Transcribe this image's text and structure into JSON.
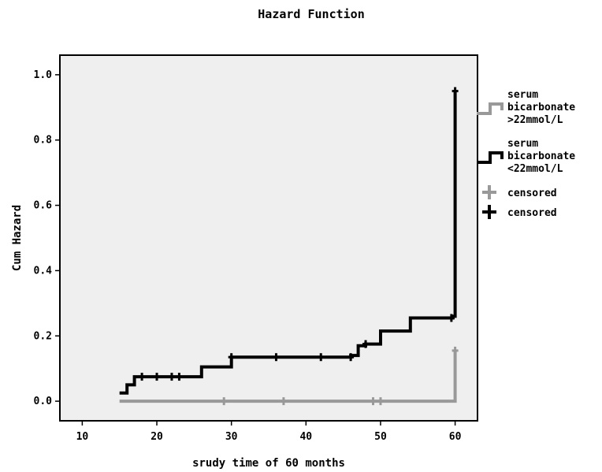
{
  "chart_data": {
    "type": "line",
    "title": "Hazard Function",
    "xlabel": "srudy time of 60 months",
    "ylabel": "Cum Hazard",
    "xlim": [
      7,
      63
    ],
    "ylim": [
      -0.06,
      1.06
    ],
    "x_ticks": [
      10,
      20,
      30,
      40,
      50,
      60
    ],
    "y_ticks": [
      0.0,
      0.2,
      0.4,
      0.6,
      0.8,
      1.0
    ],
    "x_tick_labels": [
      "10",
      "20",
      "30",
      "40",
      "50",
      "60"
    ],
    "y_tick_labels": [
      "0.0",
      "0.2",
      "0.4",
      "0.6",
      "0.8",
      "1.0"
    ],
    "grid": false,
    "legend_position": "right",
    "background": "#efefef",
    "series": [
      {
        "name": "serum bicarbonate >22mmol/L",
        "legend_lines": [
          "serum",
          "bicarbonate",
          ">22mmol/L"
        ],
        "color": "#999999",
        "step_points": [
          [
            15,
            0.0
          ],
          [
            60,
            0.0
          ],
          [
            60,
            0.155
          ]
        ],
        "censored": [
          [
            29,
            0.0
          ],
          [
            37,
            0.0
          ],
          [
            49,
            0.0
          ],
          [
            50,
            0.0
          ],
          [
            60,
            0.155
          ]
        ]
      },
      {
        "name": "serum bicarbonate <22mmol/L",
        "legend_lines": [
          "serum",
          "bicarbonate",
          "<22mmol/L"
        ],
        "color": "#000000",
        "step_points": [
          [
            15,
            0.025
          ],
          [
            16,
            0.025
          ],
          [
            16,
            0.05
          ],
          [
            17,
            0.05
          ],
          [
            17,
            0.075
          ],
          [
            26,
            0.075
          ],
          [
            26,
            0.105
          ],
          [
            30,
            0.105
          ],
          [
            30,
            0.135
          ],
          [
            46,
            0.135
          ],
          [
            46,
            0.14
          ],
          [
            47,
            0.14
          ],
          [
            47,
            0.17
          ],
          [
            48,
            0.17
          ],
          [
            48,
            0.175
          ],
          [
            50,
            0.175
          ],
          [
            50,
            0.215
          ],
          [
            54,
            0.215
          ],
          [
            54,
            0.255
          ],
          [
            59.7,
            0.255
          ],
          [
            59.7,
            0.26
          ],
          [
            60,
            0.26
          ],
          [
            60,
            0.95
          ]
        ],
        "censored": [
          [
            18,
            0.075
          ],
          [
            20,
            0.075
          ],
          [
            22,
            0.075
          ],
          [
            23,
            0.075
          ],
          [
            30,
            0.135
          ],
          [
            36,
            0.135
          ],
          [
            42,
            0.135
          ],
          [
            46,
            0.135
          ],
          [
            48,
            0.175
          ],
          [
            59.5,
            0.255
          ],
          [
            60,
            0.95
          ]
        ]
      }
    ],
    "legend_censored": [
      {
        "label": "censored",
        "color": "#999999"
      },
      {
        "label": "censored",
        "color": "#000000"
      }
    ]
  }
}
